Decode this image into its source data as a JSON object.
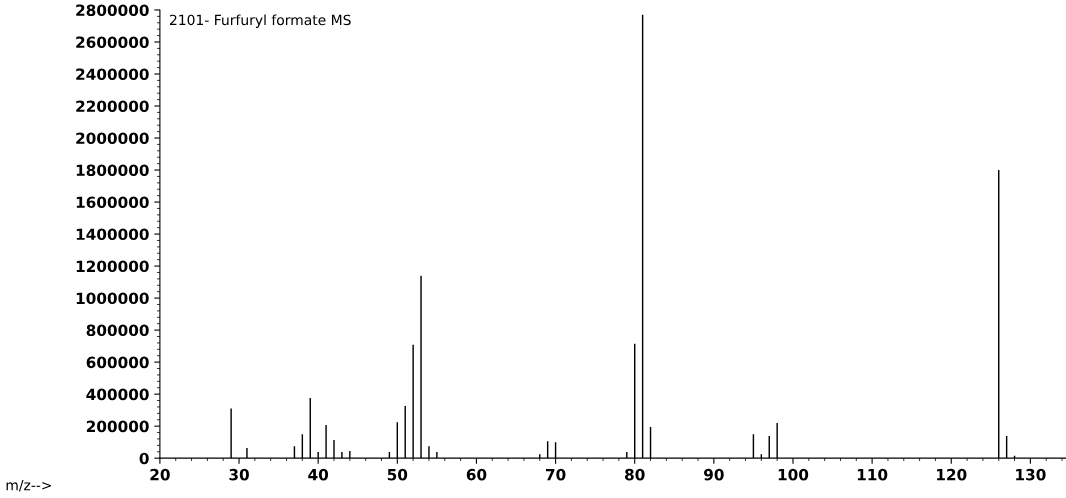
{
  "chart_data": {
    "type": "bar",
    "title": "2101- Furfuryl formate MS",
    "xlabel": "m/z-->",
    "x": [
      29,
      31,
      36,
      37,
      38,
      39,
      40,
      41,
      42,
      43,
      44,
      45,
      49,
      50,
      51,
      52,
      53,
      54,
      55,
      66,
      67,
      68,
      69,
      70,
      71,
      79,
      80,
      81,
      82,
      83,
      95,
      96,
      97,
      98,
      99,
      126,
      127,
      128
    ],
    "values": [
      310000,
      63000,
      null,
      75000,
      150000,
      376000,
      38000,
      207000,
      113000,
      38000,
      44000,
      null,
      38000,
      225000,
      326000,
      708000,
      1140000,
      75000,
      38000,
      null,
      null,
      25000,
      106000,
      100000,
      null,
      38000,
      714000,
      2770000,
      194000,
      null,
      150000,
      25000,
      138000,
      219000,
      null,
      1800000,
      138000,
      15000
    ],
    "color": "#000000",
    "xlim": [
      20,
      134.5
    ],
    "xticks": [
      20,
      30,
      40,
      50,
      60,
      70,
      80,
      90,
      100,
      110,
      120,
      130
    ],
    "ylim": [
      0,
      2800000
    ],
    "yticks": [
      0,
      200000,
      400000,
      600000,
      800000,
      1000000,
      1200000,
      1400000,
      1600000,
      1800000,
      2000000,
      2200000,
      2400000,
      2600000,
      2800000
    ],
    "grid": false
  }
}
